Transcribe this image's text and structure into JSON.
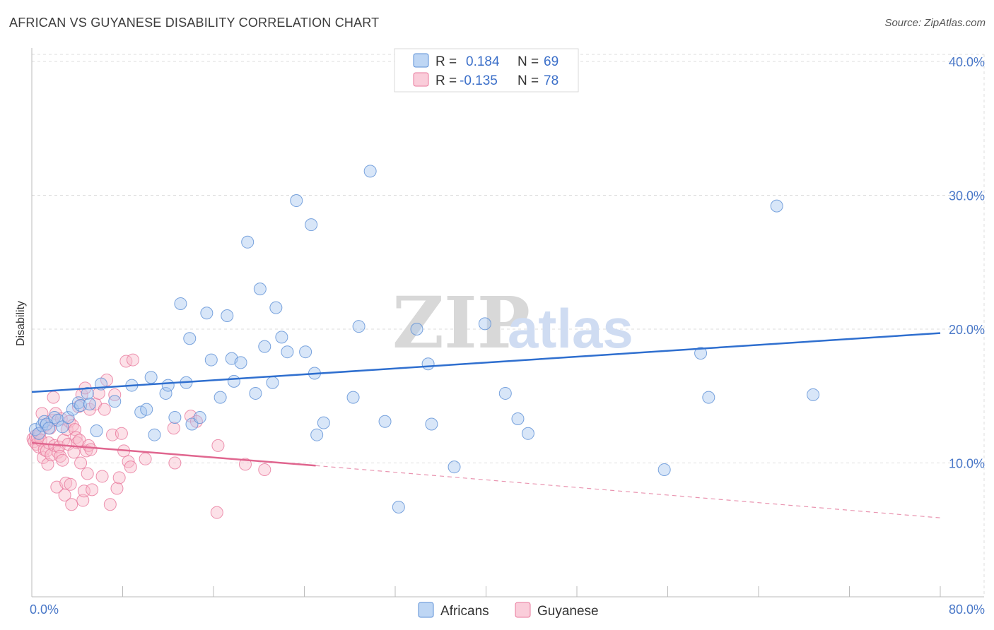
{
  "title": "AFRICAN VS GUYANESE DISABILITY CORRELATION CHART",
  "source": "Source: ZipAtlas.com",
  "watermark": {
    "part1": "ZIP",
    "part2": "atlas"
  },
  "legend": {
    "rows": [
      {
        "r_label": "R =",
        "r_value": "0.184",
        "n_label": "N =",
        "n_value": "69"
      },
      {
        "r_label": "R =",
        "r_value": "-0.135",
        "n_label": "N =",
        "n_value": "78"
      }
    ]
  },
  "colors": {
    "africans_fill": "#a8c8f0",
    "africans_stroke": "#5b8fd6",
    "africans_line": "#2f6fcf",
    "guyanese_fill": "#f8bccd",
    "guyanese_stroke": "#e8789c",
    "guyanese_line": "#e0668f"
  },
  "chart_data": {
    "type": "scatter",
    "title": "AFRICAN VS GUYANESE DISABILITY CORRELATION CHART",
    "xlabel": "",
    "ylabel": "Disability",
    "xlim": [
      0,
      80
    ],
    "ylim": [
      0,
      41
    ],
    "x_tick_labels": [
      "0.0%",
      "80.0%"
    ],
    "y_ticks": [
      10,
      20,
      30,
      40
    ],
    "y_tick_labels": [
      "10.0%",
      "20.0%",
      "30.0%",
      "40.0%"
    ],
    "grid": true,
    "legend_placement": "top-center",
    "series": [
      {
        "name": "Africans",
        "r": 0.184,
        "n": 69,
        "trend": {
          "x": [
            0,
            80
          ],
          "y": [
            15.3,
            19.7
          ]
        },
        "points": [
          [
            0.3,
            12.5
          ],
          [
            0.6,
            12.2
          ],
          [
            0.9,
            12.8
          ],
          [
            1.1,
            13.1
          ],
          [
            1.3,
            12.9
          ],
          [
            1.5,
            12.6
          ],
          [
            2.0,
            13.4
          ],
          [
            2.3,
            13.2
          ],
          [
            2.7,
            12.7
          ],
          [
            3.2,
            13.4
          ],
          [
            3.6,
            14.0
          ],
          [
            4.1,
            14.5
          ],
          [
            4.3,
            14.3
          ],
          [
            4.9,
            15.2
          ],
          [
            5.1,
            14.4
          ],
          [
            5.7,
            12.4
          ],
          [
            6.1,
            15.9
          ],
          [
            7.3,
            14.6
          ],
          [
            8.8,
            15.8
          ],
          [
            9.6,
            13.8
          ],
          [
            10.1,
            14.0
          ],
          [
            10.5,
            16.4
          ],
          [
            10.8,
            12.1
          ],
          [
            11.8,
            15.2
          ],
          [
            12.0,
            15.8
          ],
          [
            12.6,
            13.4
          ],
          [
            13.1,
            21.9
          ],
          [
            13.6,
            16.0
          ],
          [
            13.9,
            19.3
          ],
          [
            14.1,
            12.9
          ],
          [
            14.8,
            13.4
          ],
          [
            15.4,
            21.2
          ],
          [
            15.8,
            17.7
          ],
          [
            16.6,
            14.9
          ],
          [
            17.2,
            21.0
          ],
          [
            17.6,
            17.8
          ],
          [
            17.8,
            16.1
          ],
          [
            18.4,
            17.5
          ],
          [
            19.0,
            26.5
          ],
          [
            19.7,
            15.2
          ],
          [
            20.1,
            23.0
          ],
          [
            20.5,
            18.7
          ],
          [
            21.2,
            16.0
          ],
          [
            21.5,
            21.6
          ],
          [
            22.0,
            19.4
          ],
          [
            22.5,
            18.3
          ],
          [
            23.3,
            29.6
          ],
          [
            24.1,
            18.3
          ],
          [
            24.6,
            27.8
          ],
          [
            24.9,
            16.7
          ],
          [
            25.1,
            12.1
          ],
          [
            25.7,
            13.0
          ],
          [
            28.3,
            14.9
          ],
          [
            28.8,
            20.2
          ],
          [
            29.8,
            31.8
          ],
          [
            31.1,
            13.1
          ],
          [
            32.3,
            6.7
          ],
          [
            33.9,
            20.0
          ],
          [
            34.9,
            17.4
          ],
          [
            35.2,
            12.9
          ],
          [
            37.2,
            9.7
          ],
          [
            39.9,
            20.4
          ],
          [
            41.7,
            15.2
          ],
          [
            42.8,
            13.3
          ],
          [
            43.7,
            12.2
          ],
          [
            55.7,
            9.5
          ],
          [
            58.9,
            18.2
          ],
          [
            59.6,
            14.9
          ],
          [
            65.6,
            29.2
          ],
          [
            68.8,
            15.1
          ]
        ]
      },
      {
        "name": "Guyanese",
        "r": -0.135,
        "n": 78,
        "trend": {
          "x": [
            0,
            25
          ],
          "y": [
            11.5,
            9.8
          ]
        },
        "trend_dashed": {
          "x": [
            25,
            80
          ],
          "y": [
            9.8,
            5.9
          ]
        },
        "points": [
          [
            0.1,
            11.8
          ],
          [
            0.2,
            11.6
          ],
          [
            0.3,
            12.0
          ],
          [
            0.4,
            11.4
          ],
          [
            0.5,
            11.9
          ],
          [
            0.6,
            11.2
          ],
          [
            0.7,
            12.2
          ],
          [
            0.8,
            11.7
          ],
          [
            0.9,
            13.7
          ],
          [
            1.0,
            10.4
          ],
          [
            1.1,
            11.0
          ],
          [
            1.2,
            12.8
          ],
          [
            1.3,
            10.9
          ],
          [
            1.4,
            9.9
          ],
          [
            1.5,
            11.5
          ],
          [
            1.6,
            12.6
          ],
          [
            1.7,
            10.6
          ],
          [
            1.8,
            13.2
          ],
          [
            1.9,
            14.9
          ],
          [
            2.0,
            11.3
          ],
          [
            2.1,
            13.7
          ],
          [
            2.2,
            8.2
          ],
          [
            2.3,
            10.8
          ],
          [
            2.4,
            11.2
          ],
          [
            2.5,
            10.5
          ],
          [
            2.6,
            13.3
          ],
          [
            2.7,
            10.2
          ],
          [
            2.8,
            11.7
          ],
          [
            2.9,
            7.6
          ],
          [
            3.0,
            8.5
          ],
          [
            3.1,
            12.5
          ],
          [
            3.2,
            11.4
          ],
          [
            3.3,
            13.1
          ],
          [
            3.4,
            8.4
          ],
          [
            3.5,
            6.9
          ],
          [
            3.6,
            12.8
          ],
          [
            3.7,
            10.8
          ],
          [
            3.8,
            12.5
          ],
          [
            3.9,
            11.9
          ],
          [
            4.0,
            11.5
          ],
          [
            4.1,
            14.2
          ],
          [
            4.2,
            11.7
          ],
          [
            4.3,
            10.0
          ],
          [
            4.4,
            15.1
          ],
          [
            4.5,
            7.2
          ],
          [
            4.6,
            7.9
          ],
          [
            4.7,
            15.6
          ],
          [
            4.8,
            10.9
          ],
          [
            4.9,
            9.2
          ],
          [
            5.0,
            11.3
          ],
          [
            5.1,
            14.0
          ],
          [
            5.2,
            11.0
          ],
          [
            5.3,
            8.0
          ],
          [
            5.6,
            14.4
          ],
          [
            5.9,
            15.2
          ],
          [
            6.2,
            9.0
          ],
          [
            6.4,
            14.0
          ],
          [
            6.6,
            16.2
          ],
          [
            6.9,
            6.9
          ],
          [
            7.1,
            12.1
          ],
          [
            7.3,
            15.1
          ],
          [
            7.5,
            8.1
          ],
          [
            7.7,
            8.9
          ],
          [
            7.9,
            12.2
          ],
          [
            8.1,
            10.9
          ],
          [
            8.3,
            17.6
          ],
          [
            8.5,
            10.1
          ],
          [
            8.7,
            9.7
          ],
          [
            8.9,
            17.7
          ],
          [
            10.0,
            10.3
          ],
          [
            12.5,
            12.6
          ],
          [
            12.6,
            10.0
          ],
          [
            14.0,
            13.5
          ],
          [
            16.4,
            11.3
          ],
          [
            16.3,
            6.3
          ],
          [
            18.8,
            9.9
          ],
          [
            20.5,
            9.5
          ],
          [
            14.5,
            13.1
          ]
        ]
      }
    ]
  },
  "bottom_legend": [
    {
      "name": "Africans"
    },
    {
      "name": "Guyanese"
    }
  ]
}
